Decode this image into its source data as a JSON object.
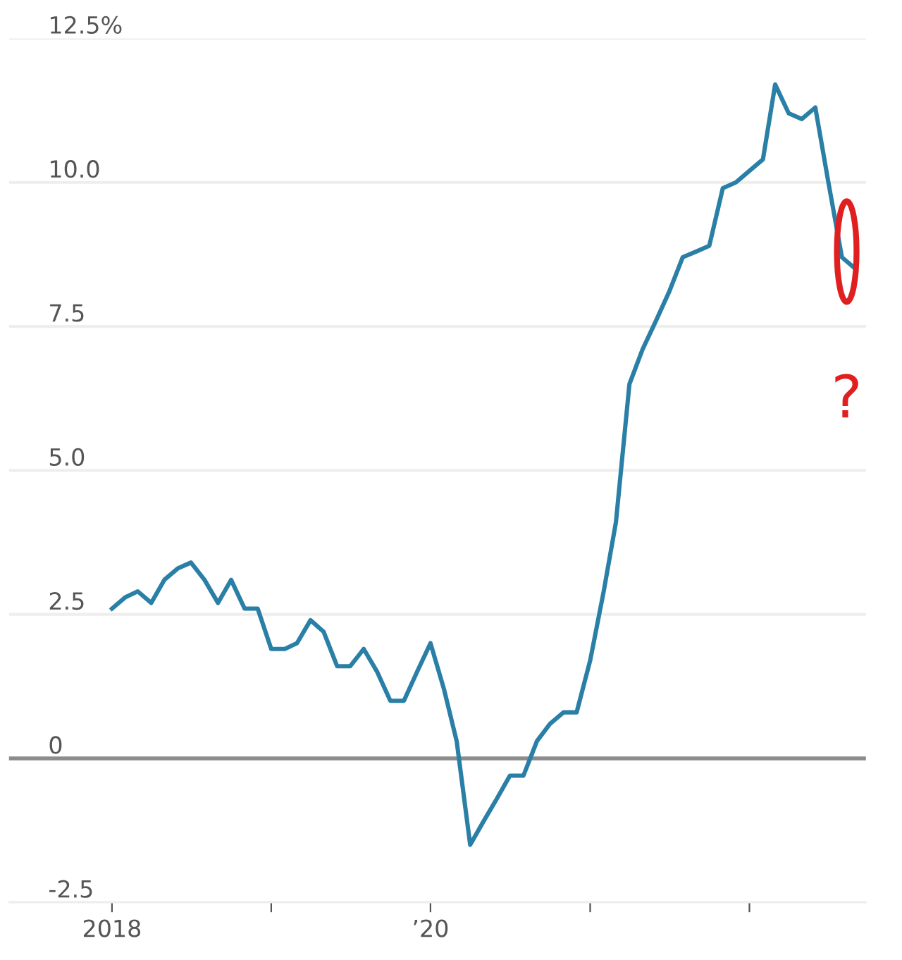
{
  "chart_data": {
    "type": "line",
    "x": [
      "2018-01",
      "2018-02",
      "2018-03",
      "2018-04",
      "2018-05",
      "2018-06",
      "2018-07",
      "2018-08",
      "2018-09",
      "2018-10",
      "2018-11",
      "2018-12",
      "2019-01",
      "2019-02",
      "2019-03",
      "2019-04",
      "2019-05",
      "2019-06",
      "2019-07",
      "2019-08",
      "2019-09",
      "2019-10",
      "2019-11",
      "2019-12",
      "2020-01",
      "2020-02",
      "2020-03",
      "2020-04",
      "2020-05",
      "2020-06",
      "2020-07",
      "2020-08",
      "2020-09",
      "2020-10",
      "2020-11",
      "2020-12",
      "2021-01",
      "2021-02",
      "2021-03",
      "2021-04",
      "2021-05",
      "2021-06",
      "2021-07",
      "2021-08",
      "2021-09",
      "2021-10",
      "2021-11",
      "2021-12",
      "2022-01",
      "2022-02",
      "2022-03",
      "2022-04",
      "2022-05",
      "2022-06",
      "2022-07",
      "2022-08",
      "2022-09"
    ],
    "series": [
      {
        "color": "#2a7fa6",
        "values": [
          2.6,
          2.8,
          2.9,
          2.7,
          3.1,
          3.3,
          3.4,
          3.1,
          2.7,
          3.1,
          2.6,
          2.6,
          1.9,
          1.9,
          2.0,
          2.4,
          2.2,
          1.6,
          1.6,
          1.9,
          1.5,
          1.0,
          1.0,
          1.5,
          2.0,
          1.2,
          0.3,
          -1.5,
          -1.1,
          -0.7,
          -0.3,
          -0.3,
          0.3,
          0.6,
          0.8,
          0.8,
          1.7,
          2.9,
          4.1,
          6.5,
          7.1,
          7.6,
          8.1,
          8.7,
          8.8,
          8.9,
          9.9,
          10.0,
          10.2,
          10.4,
          11.7,
          11.2,
          11.1,
          11.3,
          10.0,
          8.7,
          8.5
        ]
      }
    ],
    "xlim": [
      "2017-05-10",
      "2022-09-25"
    ],
    "xticks": [
      {
        "value": "2018-01",
        "label": "2018"
      },
      {
        "value": "2019-01",
        "label": null
      },
      {
        "value": "2020-01",
        "label": "’20"
      },
      {
        "value": "2021-01",
        "label": null
      },
      {
        "value": "2022-01",
        "label": null
      }
    ],
    "ylim": [
      -2.5,
      12.5
    ],
    "yticks": [
      {
        "value": -2.5,
        "label": "-2.5"
      },
      0,
      {
        "value": 2.5,
        "label": "2.5"
      },
      {
        "value": 5.0,
        "label": "5.0"
      },
      {
        "value": 7.5,
        "label": "7.5"
      },
      {
        "value": 10.0,
        "label": "10.0"
      },
      {
        "value": 12.5,
        "label": "12.5%"
      }
    ],
    "grid": "y",
    "ref_lines": [
      {
        "axis": "y",
        "value": 0,
        "color": "#8c8c8c"
      }
    ],
    "annotations": [
      {
        "text": "?",
        "x": "2022-09",
        "y": 8.5
      }
    ],
    "legend": false
  }
}
